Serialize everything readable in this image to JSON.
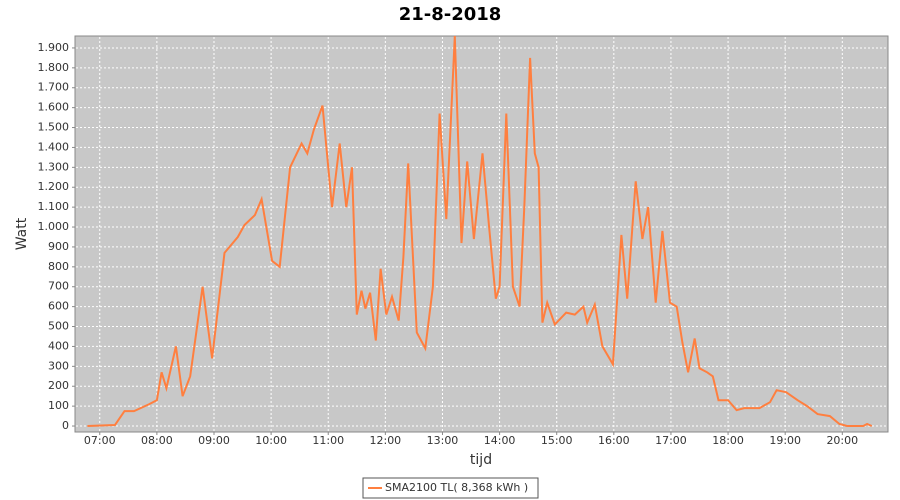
{
  "chart_data": {
    "type": "line",
    "title": "21-8-2018",
    "xlabel": "tijd",
    "ylabel": "Watt",
    "x": [
      "06:47",
      "07:16",
      "07:26",
      "07:36",
      "07:52",
      "08:00",
      "08:05",
      "08:10",
      "08:20",
      "08:27",
      "08:35",
      "08:48",
      "08:58",
      "09:11",
      "09:25",
      "09:32",
      "09:43",
      "09:50",
      "10:01",
      "10:09",
      "10:20",
      "10:32",
      "10:38",
      "10:45",
      "10:54",
      "11:04",
      "11:12",
      "11:19",
      "11:25",
      "11:30",
      "11:35",
      "11:39",
      "11:44",
      "11:50",
      "11:55",
      "12:01",
      "12:07",
      "12:14",
      "12:19",
      "12:24",
      "12:33",
      "12:42",
      "12:50",
      "12:57",
      "13:04",
      "13:13",
      "13:20",
      "13:26",
      "13:33",
      "13:42",
      "13:49",
      "13:56",
      "14:00",
      "14:07",
      "14:14",
      "14:21",
      "14:26",
      "14:32",
      "14:37",
      "14:41",
      "14:45",
      "14:50",
      "14:58",
      "15:10",
      "15:19",
      "15:28",
      "15:32",
      "15:40",
      "15:48",
      "15:59",
      "16:08",
      "16:14",
      "16:23",
      "16:30",
      "16:36",
      "16:44",
      "16:51",
      "16:59",
      "17:06",
      "17:12",
      "17:18",
      "17:25",
      "17:30",
      "17:38",
      "17:44",
      "17:50",
      "18:00",
      "18:09",
      "18:17",
      "18:33",
      "18:44",
      "18:51",
      "19:01",
      "19:13",
      "19:23",
      "19:34",
      "19:47",
      "19:57",
      "20:05",
      "20:22",
      "20:26",
      "20:31"
    ],
    "series": [
      {
        "name": "SMA2100 TL( 8,368 kWh )",
        "color": "#ff7f3f",
        "values": [
          0,
          5,
          75,
          75,
          110,
          130,
          270,
          190,
          400,
          150,
          250,
          700,
          340,
          870,
          950,
          1010,
          1060,
          1140,
          830,
          800,
          1300,
          1420,
          1370,
          1490,
          1610,
          1100,
          1420,
          1100,
          1300,
          560,
          680,
          590,
          670,
          430,
          790,
          560,
          650,
          530,
          850,
          1320,
          470,
          390,
          700,
          1570,
          1040,
          1960,
          920,
          1330,
          940,
          1370,
          1000,
          640,
          700,
          1570,
          700,
          600,
          1100,
          1850,
          1370,
          1300,
          520,
          620,
          510,
          570,
          560,
          600,
          520,
          610,
          400,
          310,
          960,
          640,
          1230,
          940,
          1100,
          620,
          980,
          620,
          600,
          420,
          270,
          440,
          290,
          270,
          250,
          130,
          130,
          80,
          90,
          90,
          120,
          180,
          170,
          130,
          100,
          60,
          50,
          10,
          0,
          0,
          10,
          0
        ]
      }
    ],
    "xlim": [
      "06:34",
      "20:48"
    ],
    "xticks": [
      "07:00",
      "08:00",
      "09:00",
      "10:00",
      "11:00",
      "12:00",
      "13:00",
      "14:00",
      "15:00",
      "16:00",
      "17:00",
      "18:00",
      "19:00",
      "20:00"
    ],
    "ylim": [
      -30,
      1960
    ],
    "yticks": [
      0,
      100,
      200,
      300,
      400,
      500,
      600,
      700,
      800,
      900,
      {
        "value": 1000,
        "label": "1.000"
      },
      {
        "value": 1100,
        "label": "1.100"
      },
      {
        "value": 1200,
        "label": "1.200"
      },
      {
        "value": 1300,
        "label": "1.300"
      },
      {
        "value": 1400,
        "label": "1.400"
      },
      {
        "value": 1500,
        "label": "1.500"
      },
      {
        "value": 1600,
        "label": "1.600"
      },
      {
        "value": 1700,
        "label": "1.700"
      },
      {
        "value": 1800,
        "label": "1.800"
      },
      {
        "value": 1900,
        "label": "1.900"
      }
    ],
    "grid": true
  }
}
